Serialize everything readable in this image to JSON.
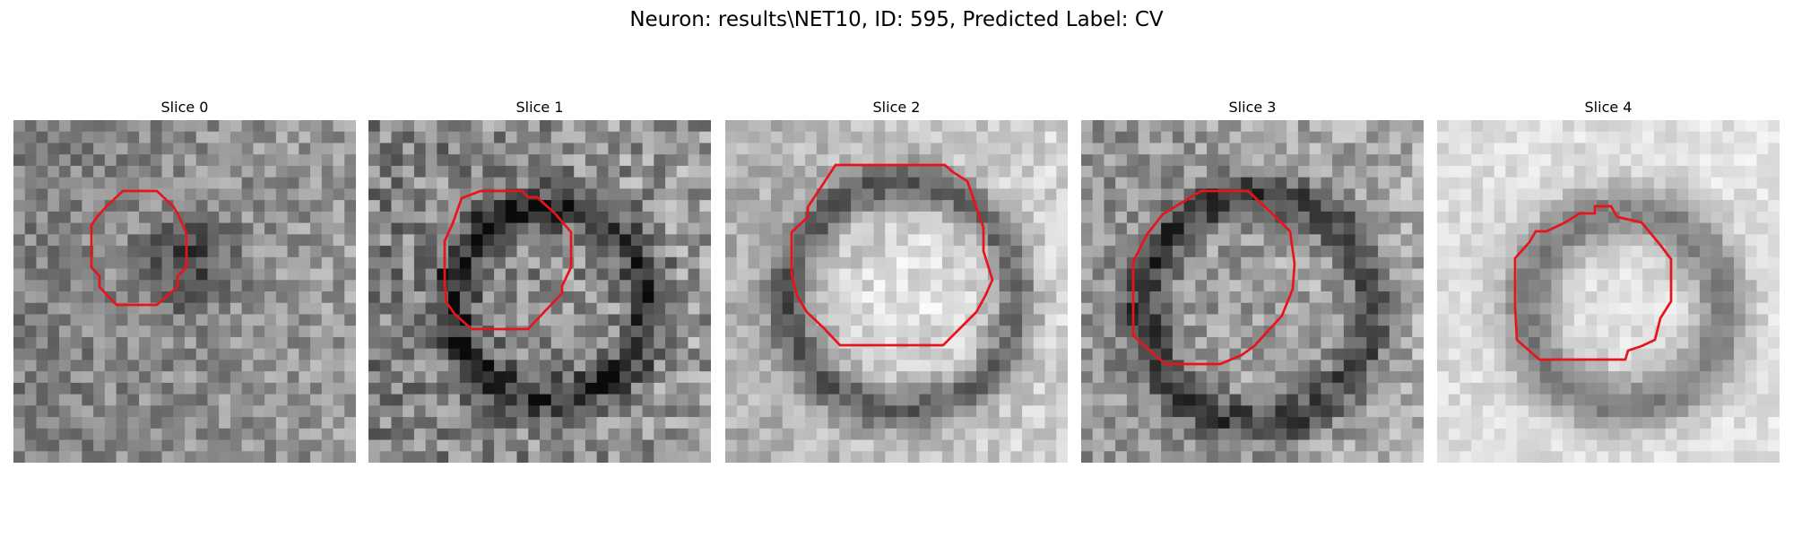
{
  "figure": {
    "title": "Neuron: results\\NET10, ID: 595, Predicted Label: CV",
    "contour_color": "#e8141c"
  },
  "panels": [
    {
      "title": "Slice 0",
      "grid": 30,
      "base": 0.55,
      "lightness_left_right": [
        -0.05,
        0.05
      ],
      "blob": {
        "cx": 15,
        "cy": 12,
        "r": 6,
        "dark": true
      },
      "ring": null,
      "noise": 0.16
    },
    {
      "title": "Slice 1",
      "grid": 30,
      "base": 0.55,
      "lightness_left_right": [
        -0.05,
        0.05
      ],
      "blob": null,
      "ring": {
        "cx": 15.5,
        "cy": 15.5,
        "r": 8.5,
        "width": 1.4
      },
      "noise": 0.22
    },
    {
      "title": "Slice 2",
      "grid": 30,
      "base": 0.78,
      "lightness_left_right": [
        -0.1,
        0.04
      ],
      "blob": {
        "cx": 15,
        "cy": 15,
        "r": 9,
        "dark": false
      },
      "ring": {
        "cx": 15,
        "cy": 15,
        "r": 10,
        "width": 1.3
      },
      "noise": 0.12
    },
    {
      "title": "Slice 3",
      "grid": 30,
      "base": 0.62,
      "lightness_left_right": [
        -0.05,
        0.05
      ],
      "blob": null,
      "ring": {
        "cx": 15,
        "cy": 16,
        "r": 10,
        "width": 1.4
      },
      "noise": 0.17
    },
    {
      "title": "Slice 4",
      "grid": 30,
      "base": 0.86,
      "lightness_left_right": [
        0.0,
        0.03
      ],
      "blob": null,
      "ring": {
        "cx": 16,
        "cy": 16,
        "r": 8.5,
        "width": 1.8
      },
      "noise": 0.08
    }
  ]
}
